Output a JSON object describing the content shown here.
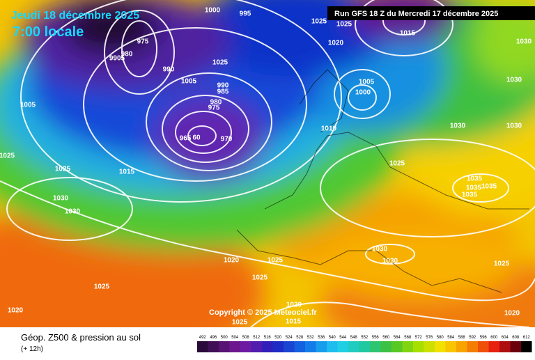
{
  "header": {
    "date": "Jeudi 18 décembre 2025",
    "time": "7:00 locale",
    "run": "Run GFS 18 Z du Mercredi 17 décembre 2025"
  },
  "map": {
    "copyright": "Copyright © 2025 Meteociel.fr",
    "isobar_labels": [
      "1000",
      "995",
      "1025",
      "1025",
      "1020",
      "1015",
      "1030",
      "1005",
      "975",
      "980",
      "9905",
      "990",
      "1025",
      "1005",
      "990",
      "985",
      "980",
      "975",
      "965",
      "60",
      "970",
      "1005",
      "1000",
      "1010",
      "1030",
      "1030",
      "1030",
      "1025",
      "1025",
      "1015",
      "1025",
      "1035",
      "1035",
      "1035",
      "1035",
      "1030",
      "1030",
      "1020",
      "1025",
      "1025",
      "1030",
      "1030",
      "1025",
      "1025",
      "1020",
      "1020",
      "1015",
      "1025",
      "1020"
    ]
  },
  "legend": {
    "title": "Géop. Z500 & pression au sol",
    "lead": "(+ 12h)",
    "values": [
      "492",
      "496",
      "500",
      "504",
      "508",
      "512",
      "516",
      "520",
      "524",
      "528",
      "532",
      "536",
      "540",
      "544",
      "548",
      "552",
      "556",
      "560",
      "564",
      "568",
      "572",
      "576",
      "580",
      "584",
      "588",
      "592",
      "596",
      "600",
      "604",
      "608",
      "612"
    ]
  }
}
